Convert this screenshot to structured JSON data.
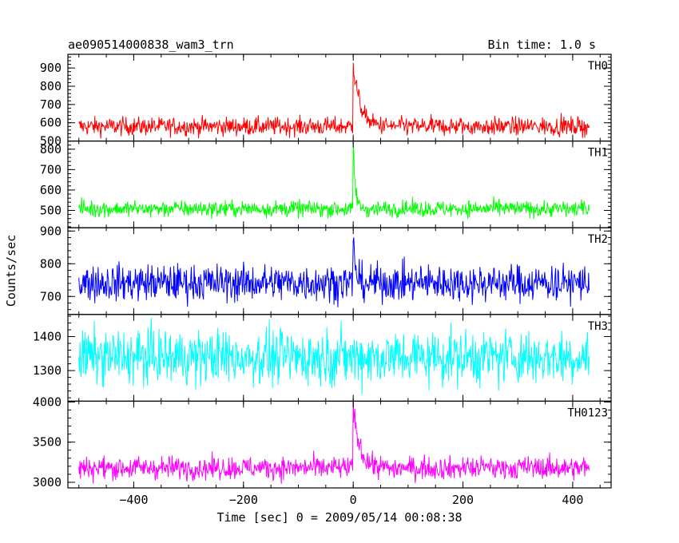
{
  "chart_data": {
    "type": "line",
    "title": "ae090514000838_wam3_trn",
    "subtitle": "Bin time: 1.0 s",
    "xlabel": "Time [sec] 0 = 2009/05/14 00:08:38",
    "ylabel": "Counts/sec",
    "xlim": [
      -520,
      470
    ],
    "x_range": [
      -500,
      430
    ],
    "bin_time": 1.0,
    "x_ticks": [
      -400,
      -200,
      0,
      200,
      400
    ],
    "x_tick_labels": [
      "−400",
      "−200",
      "0",
      "200",
      "400"
    ],
    "grid": false,
    "panels": [
      {
        "name": "TH0",
        "color": "#ff0000",
        "ylim": [
          500,
          975
        ],
        "y_ticks": [
          500,
          600,
          700,
          800,
          900
        ],
        "y_tick_labels": [
          "500",
          "600",
          "700",
          "800",
          "900"
        ],
        "baseline": 580,
        "noise": 25,
        "peak": 975,
        "peak_x": 0,
        "decay": 12,
        "post_level": 0
      },
      {
        "name": "TH1",
        "color": "#00ff00",
        "ylim": [
          415,
          840
        ],
        "y_ticks": [
          500,
          600,
          700,
          800
        ],
        "y_tick_labels": [
          "500",
          "600",
          "700",
          "800"
        ],
        "baseline": 508,
        "noise": 20,
        "peak": 830,
        "peak_x": 0,
        "decay": 4,
        "post_level": 0
      },
      {
        "name": "TH2",
        "color": "#0000ff",
        "ylim": [
          645,
          910
        ],
        "y_ticks": [
          700,
          800,
          900
        ],
        "y_tick_labels": [
          "700",
          "800",
          "900"
        ],
        "baseline": 742,
        "noise": 28,
        "peak": 905,
        "peak_x": 0,
        "decay": 4,
        "post_level": 0
      },
      {
        "name": "TH3",
        "color": "#00ffff",
        "ylim": [
          1210,
          1465
        ],
        "y_ticks": [
          1300,
          1400
        ],
        "y_tick_labels": [
          "1300",
          "1400"
        ],
        "baseline": 1340,
        "noise": 40,
        "peak": 0,
        "peak_x": 0,
        "decay": 0,
        "post_level": 0
      },
      {
        "name": "TH0123",
        "color": "#ff00ff",
        "ylim": [
          2930,
          4010
        ],
        "y_ticks": [
          3000,
          3500,
          4000
        ],
        "y_tick_labels": [
          "3000",
          "3500",
          "4000"
        ],
        "baseline": 3180,
        "noise": 70,
        "peak": 4000,
        "peak_x": 0,
        "decay": 12,
        "post_level": 0
      }
    ]
  }
}
